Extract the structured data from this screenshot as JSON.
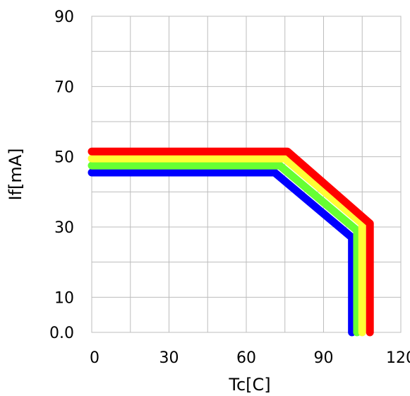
{
  "chart_data": {
    "type": "line",
    "title": "",
    "xlabel": "Tc[C]",
    "ylabel": "If[mA]",
    "xlim": [
      0,
      120
    ],
    "ylim": [
      0,
      90
    ],
    "x_ticks": [
      0,
      30,
      60,
      90,
      120
    ],
    "y_ticks": [
      0,
      10,
      30,
      50,
      70,
      90
    ],
    "x_tick_labels": [
      "0",
      "30",
      "60",
      "90",
      "120"
    ],
    "y_tick_labels": [
      "0.0",
      "10",
      "30",
      "50",
      "70",
      "90"
    ],
    "grid": true,
    "legend": "none",
    "series": [
      {
        "color": "#0000ff",
        "points": [
          [
            0,
            45.5
          ],
          [
            71,
            45.5
          ],
          [
            101,
            27
          ],
          [
            101,
            0
          ]
        ]
      },
      {
        "color": "#66ff33",
        "points": [
          [
            0,
            47.5
          ],
          [
            73,
            47.5
          ],
          [
            103,
            29
          ],
          [
            103,
            0
          ]
        ]
      },
      {
        "color": "#ffff33",
        "points": [
          [
            0,
            49.5
          ],
          [
            75,
            49.5
          ],
          [
            105,
            31
          ],
          [
            105,
            0
          ]
        ]
      },
      {
        "color": "#ff0000",
        "points": [
          [
            0,
            51.5
          ],
          [
            76,
            51.5
          ],
          [
            108,
            31
          ],
          [
            108,
            0
          ]
        ]
      }
    ]
  }
}
